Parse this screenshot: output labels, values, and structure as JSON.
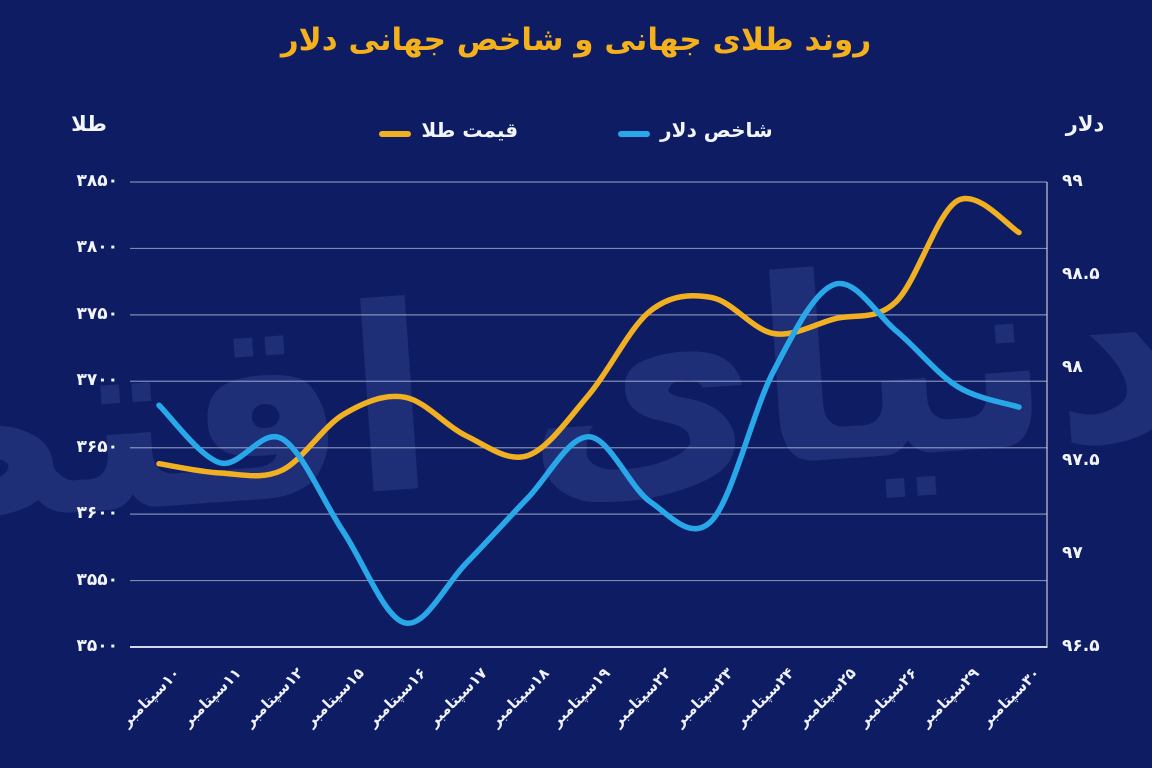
{
  "title": "روند طلای جهانی و شاخص جهانی دلار",
  "watermark": "دنیای اقتصاد",
  "legend": {
    "gold": "قیمت طلا",
    "dollar": "شاخص دلار"
  },
  "colors": {
    "background": "#0e1c63",
    "gold_line": "#f1b021",
    "dollar_line": "#29a8e9",
    "title_text": "#f4b11c",
    "axis_text": "#f2f5fb",
    "gridline": "#dde3f0",
    "watermark": "#6d86d9"
  },
  "chart_data": {
    "type": "line",
    "title": "روند طلای جهانی و شاخص جهانی دلار",
    "categories": [
      "۱۰سپتامبر",
      "۱۱سپتامبر",
      "۱۲سپتامبر",
      "۱۵سپتامبر",
      "۱۶سپتامبر",
      "۱۷سپتامبر",
      "۱۸سپتامبر",
      "۱۹سپتامبر",
      "۲۲سپتامبر",
      "۲۳سپتامبر",
      "۲۴سپتامبر",
      "۲۵سپتامبر",
      "۲۶سپتامبر",
      "۲۹سپتامبر",
      "۳۰سپتامبر"
    ],
    "series": [
      {
        "name": "قیمت طلا",
        "axis": "left",
        "color": "#f1b021",
        "values": [
          3638,
          3631,
          3633,
          3675,
          3688,
          3659,
          3644,
          3690,
          3753,
          3763,
          3736,
          3747,
          3760,
          3836,
          3812
        ]
      },
      {
        "name": "شاخص دلار",
        "axis": "right",
        "color": "#29a8e9",
        "values": [
          97.8,
          97.49,
          97.62,
          97.12,
          96.63,
          96.95,
          97.3,
          97.63,
          97.28,
          97.18,
          97.98,
          98.45,
          98.2,
          97.9,
          97.79
        ]
      }
    ],
    "left_axis": {
      "label": "طلا",
      "min": 3500,
      "max": 3850,
      "tick_labels": [
        "۳۸۵۰",
        "۳۸۰۰",
        "۳۷۵۰",
        "۳۷۰۰",
        "۳۶۵۰",
        "۳۶۰۰",
        "۳۵۵۰",
        "۳۵۰۰"
      ],
      "tick_values": [
        3850,
        3800,
        3750,
        3700,
        3650,
        3600,
        3550,
        3500
      ]
    },
    "right_axis": {
      "label": "دلار",
      "min": 96.5,
      "max": 99,
      "tick_labels": [
        "۹۹",
        "۹۸.۵",
        "۹۸",
        "۹۷.۵",
        "۹۷",
        "۹۶.۵"
      ],
      "tick_values": [
        99,
        98.5,
        98,
        97.5,
        97,
        96.5
      ]
    },
    "grid": "horizontal",
    "legend_position": "top-center"
  }
}
